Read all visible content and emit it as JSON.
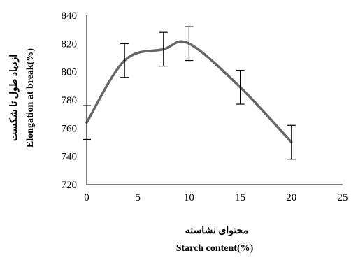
{
  "chart_data": {
    "type": "line",
    "x": [
      0,
      3.7,
      7.5,
      10,
      15,
      20
    ],
    "series": [
      {
        "values": [
          764,
          808,
          816,
          820,
          789,
          750
        ],
        "error": [
          12,
          12,
          12,
          12,
          12,
          12
        ],
        "color": "#666666"
      }
    ],
    "xlim": [
      0,
      25
    ],
    "ylim": [
      720,
      840
    ],
    "xticks": [
      "0",
      "5",
      "10",
      "15",
      "20",
      "25"
    ],
    "yticks": [
      "720",
      "740",
      "760",
      "780",
      "800",
      "820",
      "840"
    ],
    "xlabel_fa": "محتوای نشاسته",
    "xlabel": "Starch  content(%)",
    "ylabel_fa": "ازدیاد طول  تا شکست",
    "ylabel": "Elongation at break(%)",
    "grid": false,
    "legend": "none"
  }
}
